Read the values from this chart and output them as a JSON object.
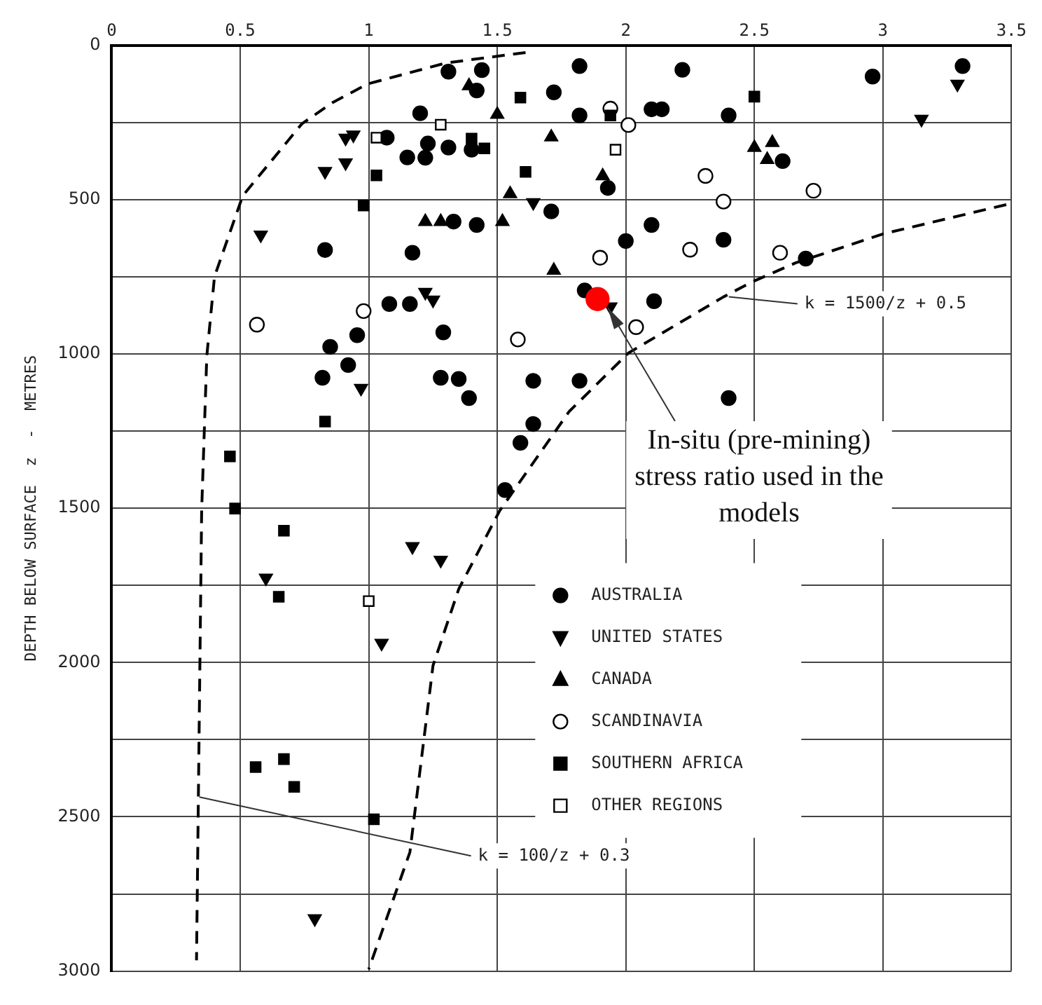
{
  "chart_data": {
    "type": "scatter",
    "ylabel": "DEPTH BELOW SURFACE  z  -  METRES",
    "xlim": [
      0,
      3.5
    ],
    "xticks": [
      0,
      0.5,
      1.0,
      1.5,
      2.0,
      2.5,
      3.0,
      3.5
    ],
    "ylim": [
      3000,
      0
    ],
    "yticks": [
      0,
      {
        "value": 250,
        "label": null
      },
      500,
      {
        "value": 750,
        "label": null
      },
      1000,
      {
        "value": 1250,
        "label": null
      },
      1500,
      {
        "value": 1750,
        "label": null
      },
      2000,
      {
        "value": 2250,
        "label": null
      },
      2500,
      {
        "value": 2750,
        "label": null
      },
      3000
    ],
    "grid": true,
    "legend": "bottom right",
    "series": [
      {
        "name": "AUSTRALIA",
        "marker": "circle",
        "color": "#000000",
        "x": [
          1.31,
          1.44,
          1.42,
          1.2,
          1.07,
          1.23,
          1.31,
          1.15,
          1.22,
          1.4,
          1.33,
          1.42,
          0.83,
          1.17,
          1.08,
          1.16,
          1.29,
          0.955,
          0.85,
          0.92,
          0.82,
          1.28,
          1.35,
          1.39,
          1.64,
          1.64,
          1.59,
          1.53,
          1.82,
          2.22,
          2.96,
          3.31,
          1.72,
          1.82,
          2.1,
          2.14,
          2.4,
          2.61,
          1.93,
          1.71,
          2.1,
          2.0,
          2.38,
          2.7,
          1.84,
          2.11,
          1.82,
          2.4
        ],
        "values": [
          85,
          80,
          146,
          220,
          299,
          318,
          331,
          363,
          364,
          338,
          571,
          582,
          663,
          672,
          838,
          838,
          930,
          939,
          977,
          1036,
          1077,
          1077,
          1081,
          1143,
          1087,
          1227,
          1288,
          1441,
          67,
          79,
          101,
          67,
          152,
          227,
          207,
          207,
          227,
          375,
          462,
          538,
          582,
          634,
          630,
          691,
          794,
          829,
          1087,
          1143
        ]
      },
      {
        "name": "UNITED STATES",
        "marker": "triangle-down",
        "color": "#000000",
        "x": [
          0.91,
          0.94,
          0.83,
          0.91,
          0.58,
          1.22,
          1.25,
          0.97,
          1.64,
          3.29,
          3.15,
          1.94,
          0.6,
          1.17,
          1.28,
          1.05,
          0.79
        ],
        "values": [
          300,
          290,
          408,
          380,
          614,
          800,
          825,
          1111,
          509,
          125,
          239,
          847,
          1726,
          1624,
          1668,
          1937,
          2830
        ]
      },
      {
        "name": "CANADA",
        "marker": "triangle",
        "color": "#000000",
        "x": [
          1.39,
          1.5,
          1.55,
          1.22,
          1.28,
          1.52,
          1.71,
          1.91,
          2.5,
          2.57,
          2.55,
          1.72
        ],
        "values": [
          131,
          224,
          481,
          571,
          571,
          571,
          297,
          423,
          331,
          315,
          370,
          729
        ]
      },
      {
        "name": "SCANDINAVIA",
        "marker": "circle-open",
        "color": "#000000",
        "x": [
          0.565,
          0.98,
          1.58,
          1.94,
          2.01,
          2.31,
          2.38,
          2.73,
          1.9,
          2.25,
          2.6,
          2.04
        ],
        "values": [
          905,
          861,
          953,
          205,
          258,
          423,
          506,
          471,
          688,
          662,
          672,
          913
        ]
      },
      {
        "name": "SOUTHERN AFRICA",
        "marker": "square",
        "color": "#000000",
        "x": [
          1.59,
          1.4,
          1.45,
          1.61,
          1.03,
          0.98,
          1.94,
          2.5,
          0.83,
          0.46,
          0.48,
          0.67,
          0.65,
          0.56,
          0.67,
          0.71,
          1.02
        ],
        "values": [
          169,
          302,
          334,
          410,
          421,
          519,
          227,
          166,
          1219,
          1332,
          1501,
          1573,
          1787,
          2339,
          2313,
          2403,
          2508
        ]
      },
      {
        "name": "OTHER REGIONS",
        "marker": "square-open",
        "color": "#000000",
        "x": [
          1.28,
          1.03,
          1.96,
          1.0
        ],
        "values": [
          257,
          299,
          338,
          1801
        ]
      },
      {
        "type": "line",
        "marker": "none",
        "line_style": "dashed",
        "color": "#000000",
        "x": [
          1.61,
          1.3,
          0.995,
          0.86,
          0.74,
          0.51,
          0.4,
          0.37,
          0.35,
          0.33
        ],
        "values": [
          23,
          57,
          125,
          185,
          254,
          487,
          749,
          1007,
          1507,
          2965
        ]
      },
      {
        "type": "line",
        "marker": "none",
        "line_style": "dashed",
        "color": "#000000",
        "x": [
          3.48,
          3.0,
          2.66,
          2.49,
          2.38,
          2.01,
          1.78,
          1.51,
          1.35,
          1.25,
          1.16,
          1.0
        ],
        "values": [
          516,
          611,
          705,
          767,
          815,
          997,
          1186,
          1507,
          1762,
          2010,
          2615,
          2994
        ]
      },
      {
        "marker": "circle",
        "color": "#ff0000",
        "x": [
          1.89
        ],
        "values": [
          822
        ]
      }
    ],
    "annotations": [
      {
        "text": "In-situ (pre-mining) stress ratio used in the models",
        "x": 1.93,
        "y": 850
      },
      {
        "text": "k = 1500/z + 0.5",
        "x": 2.39,
        "y": 815
      },
      {
        "text": "k = 100/z + 0.3",
        "x": 0.33,
        "y": 2436
      }
    ]
  }
}
